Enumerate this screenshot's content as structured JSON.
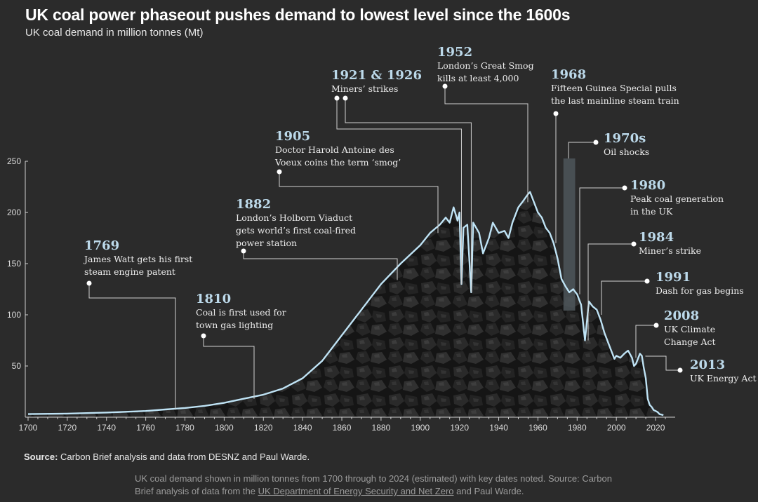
{
  "header": {
    "title": "UK coal power phaseout pushes demand to lowest level since the 1600s",
    "subtitle": "UK coal demand in million tonnes (Mt)"
  },
  "footer": {
    "source_label": "Source:",
    "source_text": "Carbon Brief analysis and data from DESNZ and Paul Warde.",
    "caption_part1": "UK coal demand shown in million tonnes from 1700 through to 2024 (estimated) with key dates noted. Source: Carbon Brief analysis of data from the",
    "caption_link": "UK Department of Energy Security and Net Zero",
    "caption_part2": "and Paul Warde."
  },
  "colors": {
    "background": "#2b2b2b",
    "line": "#bfe3f5",
    "annotation_year": "#bcd9ea",
    "annotation_text": "#ececec",
    "oil_shock_band": "#4e565b",
    "axis_text": "#dddddd",
    "coal_fill": "#141414"
  },
  "chart_data": {
    "type": "area",
    "title": "UK coal power phaseout pushes demand to lowest level since the 1600s",
    "subtitle": "UK coal demand in million tonnes (Mt)",
    "xlabel": "",
    "ylabel": "",
    "xlim": [
      1700,
      2030
    ],
    "ylim": [
      0,
      250
    ],
    "x_ticks": [
      1700,
      1720,
      1740,
      1760,
      1780,
      1800,
      1820,
      1840,
      1860,
      1880,
      1900,
      1920,
      1940,
      1960,
      1980,
      2000,
      2020
    ],
    "y_ticks": [
      50,
      100,
      150,
      200,
      250
    ],
    "grid": false,
    "series": [
      {
        "name": "UK coal demand",
        "points": [
          [
            1700,
            3
          ],
          [
            1720,
            3.5
          ],
          [
            1740,
            4.5
          ],
          [
            1760,
            6
          ],
          [
            1770,
            7.5
          ],
          [
            1780,
            9
          ],
          [
            1790,
            11
          ],
          [
            1800,
            14
          ],
          [
            1810,
            18
          ],
          [
            1820,
            22
          ],
          [
            1830,
            28
          ],
          [
            1840,
            38
          ],
          [
            1850,
            55
          ],
          [
            1860,
            80
          ],
          [
            1870,
            105
          ],
          [
            1880,
            130
          ],
          [
            1890,
            150
          ],
          [
            1900,
            168
          ],
          [
            1905,
            180
          ],
          [
            1910,
            188
          ],
          [
            1913,
            195
          ],
          [
            1915,
            190
          ],
          [
            1917,
            205
          ],
          [
            1919,
            192
          ],
          [
            1920,
            200
          ],
          [
            1921,
            130
          ],
          [
            1922,
            185
          ],
          [
            1924,
            188
          ],
          [
            1926,
            122
          ],
          [
            1927,
            190
          ],
          [
            1930,
            180
          ],
          [
            1932,
            160
          ],
          [
            1935,
            175
          ],
          [
            1937,
            190
          ],
          [
            1940,
            180
          ],
          [
            1943,
            182
          ],
          [
            1945,
            175
          ],
          [
            1947,
            190
          ],
          [
            1950,
            205
          ],
          [
            1952,
            210
          ],
          [
            1955,
            218
          ],
          [
            1956,
            220
          ],
          [
            1958,
            210
          ],
          [
            1960,
            200
          ],
          [
            1962,
            195
          ],
          [
            1964,
            185
          ],
          [
            1966,
            180
          ],
          [
            1968,
            170
          ],
          [
            1970,
            155
          ],
          [
            1972,
            135
          ],
          [
            1974,
            128
          ],
          [
            1976,
            122
          ],
          [
            1978,
            125
          ],
          [
            1980,
            120
          ],
          [
            1982,
            110
          ],
          [
            1984,
            75
          ],
          [
            1986,
            113
          ],
          [
            1988,
            108
          ],
          [
            1990,
            105
          ],
          [
            1992,
            95
          ],
          [
            1994,
            82
          ],
          [
            1996,
            72
          ],
          [
            1998,
            62
          ],
          [
            1999,
            57
          ],
          [
            2000,
            60
          ],
          [
            2002,
            58
          ],
          [
            2004,
            62
          ],
          [
            2006,
            65
          ],
          [
            2008,
            58
          ],
          [
            2009,
            50
          ],
          [
            2010,
            52
          ],
          [
            2012,
            62
          ],
          [
            2013,
            60
          ],
          [
            2014,
            48
          ],
          [
            2015,
            38
          ],
          [
            2016,
            18
          ],
          [
            2017,
            12
          ],
          [
            2018,
            10
          ],
          [
            2019,
            7
          ],
          [
            2020,
            6
          ],
          [
            2021,
            5
          ],
          [
            2022,
            3
          ],
          [
            2024,
            2
          ]
        ]
      }
    ],
    "shaded_band": {
      "label": "1970s",
      "x": [
        1973,
        1979
      ]
    },
    "annotations": [
      {
        "year": "1769",
        "text": [
          "James Watt gets his first",
          "steam engine patent"
        ],
        "x": 1769
      },
      {
        "year": "1810",
        "text": [
          "Coal is first used for",
          "town gas lighting"
        ],
        "x": 1810
      },
      {
        "year": "1882",
        "text": [
          "London’s Holborn Viaduct",
          "gets world’s first coal-fired",
          "power station"
        ],
        "x": 1882
      },
      {
        "year": "1905",
        "text": [
          "Doctor Harold Antoine des",
          "Voeux coins the term ‘smog’"
        ],
        "x": 1905
      },
      {
        "year": "1921 & 1926",
        "text": [
          "Miners’ strikes"
        ],
        "x": [
          1921,
          1926
        ]
      },
      {
        "year": "1952",
        "text": [
          "London’s Great Smog",
          "kills at least 4,000"
        ],
        "x": 1952
      },
      {
        "year": "1968",
        "text": [
          "Fifteen Guinea Special pulls",
          "the last mainline steam train"
        ],
        "x": 1968
      },
      {
        "year": "1970s",
        "text": [
          "Oil shocks"
        ],
        "x": [
          1973,
          1979
        ]
      },
      {
        "year": "1980",
        "text": [
          "Peak coal generation",
          "in the UK"
        ],
        "x": 1980
      },
      {
        "year": "1984",
        "text": [
          "Miner’s strike"
        ],
        "x": 1984
      },
      {
        "year": "1991",
        "text": [
          "Dash for gas begins"
        ],
        "x": 1991
      },
      {
        "year": "2008",
        "text": [
          "UK Climate",
          "Change Act"
        ],
        "x": 2008
      },
      {
        "year": "2013",
        "text": [
          "UK Energy Act"
        ],
        "x": 2013
      }
    ]
  }
}
